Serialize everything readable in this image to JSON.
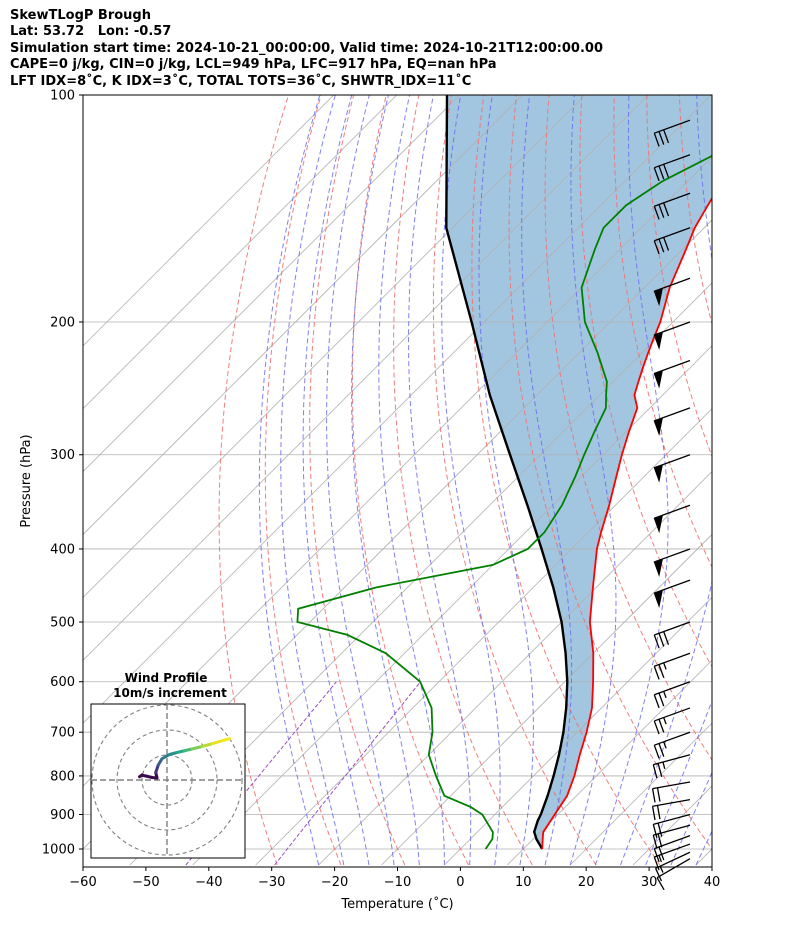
{
  "header": {
    "line1": "SkewTLogP Brough",
    "line2": "Lat: 53.72   Lon: -0.57",
    "line3": "Simulation start time: 2024-10-21_00:00:00, Valid time: 2024-10-21T12:00:00.00",
    "line4": "CAPE=0 j/kg, CIN=0 j/kg, LCL=949 hPa, LFC=917 hPa, EQ=nan hPa",
    "line5": "LFT IDX=8˚C, K IDX=3˚C, TOTAL TOTS=36˚C, SHWTR_IDX=11˚C"
  },
  "chart_data": [
    {
      "type": "line",
      "title": "SkewTLogP Brough",
      "xlabel": "Temperature (˚C)",
      "ylabel": "Pressure (hPa)",
      "xlim": [
        -60,
        40
      ],
      "ylim": [
        1050,
        100
      ],
      "yscale": "log",
      "x_ticks": [
        -60,
        -50,
        -40,
        -30,
        -20,
        -10,
        0,
        10,
        20,
        30,
        40
      ],
      "x_tick_labels": [
        "−60",
        "−50",
        "−40",
        "−30",
        "−20",
        "−10",
        "0",
        "10",
        "20",
        "30",
        "40"
      ],
      "y_ticks": [
        1000,
        900,
        800,
        700,
        600,
        500,
        400,
        300,
        200,
        100
      ],
      "y_tick_labels": [
        "1000",
        "900",
        "800",
        "700",
        "600",
        "500",
        "400",
        "300",
        "200",
        "100"
      ],
      "grid": true,
      "skew": "isotherms skewed 45 degrees",
      "colors": {
        "temperature": "#ff0000",
        "dewpoint": "#008000",
        "parcel": "#000000",
        "shade": "#a3c6e0",
        "dry_adiabat": "#f07070",
        "moist_adiabat": "#6b6bf0",
        "mixing_ratio": "#8a8a8a",
        "isotherm": "#b0b0b0",
        "grid": "#b0b0b0"
      },
      "series": [
        {
          "key": "temperature",
          "pressure": [
            1000,
            970,
            950,
            900,
            850,
            800,
            750,
            700,
            650,
            600,
            550,
            500,
            450,
            400,
            380,
            350,
            320,
            300,
            280,
            260,
            250,
            240,
            230,
            220,
            210,
            200,
            180,
            160,
            150,
            140,
            130,
            120,
            110,
            100
          ],
          "temp_c": [
            13,
            11.5,
            10.5,
            9.5,
            8.5,
            6.5,
            4.0,
            1.5,
            -1.5,
            -5.5,
            -10,
            -15.5,
            -20.5,
            -26,
            -28,
            -31,
            -34.5,
            -37,
            -39.5,
            -42,
            -44.5,
            -46,
            -47.5,
            -49,
            -50.5,
            -52,
            -56,
            -59.5,
            -61.5,
            -63,
            -64.5,
            -65,
            -64.5,
            -64
          ]
        },
        {
          "key": "dewpoint",
          "pressure": [
            1000,
            970,
            950,
            900,
            880,
            850,
            800,
            750,
            700,
            650,
            600,
            550,
            520,
            500,
            480,
            450,
            420,
            400,
            380,
            350,
            320,
            300,
            280,
            260,
            250,
            240,
            220,
            200,
            180,
            160,
            150,
            140,
            130,
            120,
            110,
            100
          ],
          "temp_c": [
            4,
            3.5,
            2.5,
            -2,
            -5,
            -11,
            -15.5,
            -20,
            -23,
            -27,
            -33,
            -43,
            -52,
            -62,
            -64,
            -55,
            -40,
            -37,
            -37,
            -38.5,
            -41,
            -43,
            -45,
            -47,
            -49,
            -51,
            -57,
            -64,
            -70,
            -74,
            -76,
            -76,
            -74,
            -70,
            -67,
            -63
          ]
        },
        {
          "key": "parcel",
          "pressure": [
            1000,
            970,
            949,
            917,
            900,
            850,
            800,
            750,
            700,
            650,
            600,
            550,
            500,
            450,
            400,
            350,
            300,
            250,
            200,
            150,
            100
          ],
          "temp_c": [
            13,
            10.5,
            9.0,
            7.8,
            7.3,
            5.4,
            3.2,
            0.7,
            -2.2,
            -5.6,
            -9.6,
            -14.4,
            -20.0,
            -26.8,
            -34.8,
            -44.0,
            -54.8,
            -67.5,
            -82.0,
            -101,
            -122
          ]
        }
      ],
      "wind_barbs": {
        "pressure": [
          1030,
          1010,
          985,
          960,
          930,
          900,
          860,
          815,
          750,
          700,
          650,
          600,
          550,
          500,
          440,
          400,
          350,
          300,
          260,
          225,
          200,
          175,
          150,
          135,
          120,
          108
        ],
        "wind_speed_knots": [
          10,
          15,
          15,
          20,
          20,
          20,
          20,
          20,
          25,
          25,
          25,
          25,
          25,
          30,
          50,
          50,
          50,
          50,
          50,
          50,
          50,
          50,
          30,
          30,
          30,
          30
        ],
        "wind_direction_deg": [
          240,
          245,
          250,
          250,
          255,
          255,
          260,
          260,
          255,
          250,
          250,
          250,
          250,
          250,
          250,
          250,
          250,
          250,
          250,
          250,
          250,
          250,
          250,
          250,
          250,
          250
        ]
      },
      "legend": "none"
    },
    {
      "type": "line",
      "title": "Wind Profile",
      "subtitle": "10m/s increment",
      "ring_step": 10,
      "ring_count": 3,
      "hodograph": {
        "u": [
          -11,
          -10,
          -9.5,
          -8,
          -6,
          -4,
          -4.5,
          -3.5,
          -2,
          1,
          4,
          7,
          10,
          14,
          18,
          22,
          25
        ],
        "v": [
          1.3,
          2,
          1.8,
          1.5,
          1.0,
          0.8,
          3.0,
          6.0,
          8.5,
          10.2,
          11,
          11.7,
          12.4,
          13.4,
          14.5,
          15.7,
          16.5
        ],
        "colors": [
          "#3a0a4e",
          "#3a0a4e",
          "#3a0a4e",
          "#3a0a4e",
          "#3a0a4e",
          "#3a0a4e",
          "#45357c",
          "#3a5d8a",
          "#2f7b8e",
          "#28918d",
          "#22a688",
          "#45ba74",
          "#7ecc55",
          "#b8da35",
          "#e5e121",
          "#f3e81e",
          "#fde725"
        ]
      }
    }
  ]
}
